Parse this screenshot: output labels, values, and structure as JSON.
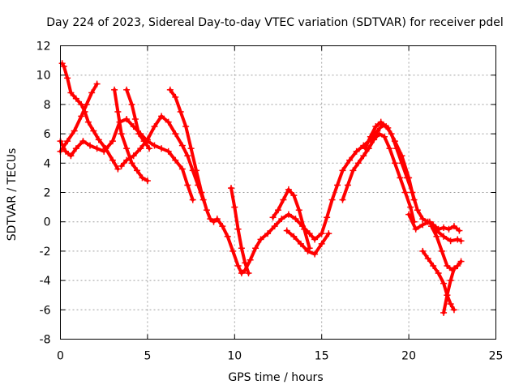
{
  "chart_data": {
    "type": "scatter",
    "title": "Day 224 of 2023, Sidereal Day-to-day VTEC variation (SDTVAR) for receiver pdel",
    "xlabel": "GPS time / hours",
    "ylabel": "SDTVAR / TECUs",
    "xlim": [
      0,
      25
    ],
    "ylim": [
      -8,
      12
    ],
    "xticks": [
      0,
      5,
      10,
      15,
      20,
      25
    ],
    "yticks": [
      -8,
      -6,
      -4,
      -2,
      0,
      2,
      4,
      6,
      8,
      10,
      12
    ],
    "grid": true,
    "marker": "+",
    "color": "#ff0000",
    "series": [
      {
        "name": "trace-1",
        "x": [
          0.0,
          0.3,
          0.6,
          0.9,
          1.3,
          1.7,
          2.1,
          2.5,
          3.0,
          3.4,
          3.8,
          4.2,
          4.6,
          5.0,
          5.4,
          5.8,
          6.2,
          6.6,
          7.0,
          7.3,
          7.6
        ],
        "y": [
          5.5,
          4.8,
          4.5,
          5.0,
          5.5,
          5.2,
          5.0,
          4.8,
          5.5,
          6.8,
          7.0,
          6.5,
          6.0,
          5.5,
          5.2,
          5.0,
          4.8,
          4.2,
          3.6,
          2.5,
          1.5
        ]
      },
      {
        "name": "trace-2",
        "x": [
          0.1,
          0.2,
          0.4,
          0.6,
          0.9,
          1.2,
          1.4,
          1.6,
          1.9,
          2.2,
          2.6,
          3.0,
          3.3
        ],
        "y": [
          10.8,
          10.6,
          9.8,
          8.8,
          8.4,
          8.0,
          7.5,
          6.8,
          6.2,
          5.6,
          5.0,
          4.2,
          3.6
        ]
      },
      {
        "name": "trace-3",
        "x": [
          0.0,
          0.4,
          0.8,
          1.2,
          1.5,
          1.8,
          2.1
        ],
        "y": [
          4.8,
          5.5,
          6.2,
          7.2,
          8.0,
          8.8,
          9.4
        ]
      },
      {
        "name": "trace-4",
        "x": [
          3.1,
          3.3,
          3.5,
          3.8,
          4.1,
          4.4,
          4.7,
          5.0
        ],
        "y": [
          9.0,
          7.5,
          6.0,
          5.0,
          4.0,
          3.5,
          3.0,
          2.8
        ]
      },
      {
        "name": "trace-5",
        "x": [
          3.5,
          3.8,
          4.2,
          4.6,
          5.0,
          5.4,
          5.8,
          6.2,
          6.6,
          7.0,
          7.3,
          7.6,
          7.9,
          8.2
        ],
        "y": [
          3.8,
          4.2,
          4.5,
          5.0,
          5.6,
          6.5,
          7.2,
          6.8,
          6.0,
          5.2,
          4.5,
          3.5,
          2.5,
          1.5
        ]
      },
      {
        "name": "trace-6",
        "x": [
          3.8,
          4.1,
          4.3,
          4.5,
          4.8,
          5.1
        ],
        "y": [
          9.0,
          8.0,
          7.0,
          6.0,
          5.5,
          5.0
        ]
      },
      {
        "name": "trace-7",
        "x": [
          6.3,
          6.6,
          6.9,
          7.2,
          7.5,
          7.8,
          8.1,
          8.4,
          8.6,
          8.8,
          9.0,
          9.3,
          9.6,
          9.9,
          10.2,
          10.4,
          10.6,
          10.9,
          11.2,
          11.5,
          11.9,
          12.3,
          12.7,
          13.1,
          13.5,
          13.9,
          14.3,
          14.6,
          15.0,
          15.3,
          15.6,
          15.9,
          16.2,
          16.6,
          17.0,
          17.4,
          17.8,
          18.2,
          18.5,
          18.8,
          19.2,
          19.6,
          20.0,
          20.3
        ],
        "y": [
          9.0,
          8.5,
          7.5,
          6.5,
          5.0,
          3.5,
          2.0,
          0.8,
          0.2,
          0.0,
          0.2,
          -0.3,
          -1.0,
          -2.0,
          -3.0,
          -3.5,
          -3.3,
          -2.6,
          -1.8,
          -1.2,
          -0.8,
          -0.3,
          0.2,
          0.5,
          0.2,
          -0.3,
          -0.8,
          -1.2,
          -0.8,
          0.3,
          1.5,
          2.5,
          3.5,
          4.2,
          4.8,
          5.2,
          5.6,
          6.2,
          6.6,
          6.4,
          5.5,
          4.5,
          3.0,
          1.5
        ]
      },
      {
        "name": "trace-8",
        "x": [
          9.8,
          10.0,
          10.2,
          10.4,
          10.6,
          10.8
        ],
        "y": [
          2.3,
          1.0,
          -0.5,
          -1.8,
          -2.8,
          -3.5
        ]
      },
      {
        "name": "trace-9",
        "x": [
          12.2,
          12.5,
          12.8,
          13.1,
          13.4,
          13.7,
          14.0,
          14.3
        ],
        "y": [
          0.3,
          0.8,
          1.5,
          2.2,
          1.8,
          0.8,
          -0.5,
          -1.8
        ]
      },
      {
        "name": "trace-10",
        "x": [
          13.0,
          13.4,
          13.8,
          14.2,
          14.6,
          15.0,
          15.4
        ],
        "y": [
          -0.6,
          -1.0,
          -1.5,
          -2.0,
          -2.2,
          -1.5,
          -0.8
        ]
      },
      {
        "name": "trace-11",
        "x": [
          16.2,
          16.5,
          16.8,
          17.1,
          17.4,
          17.7,
          18.0,
          18.3,
          18.6,
          18.9,
          19.2,
          19.5,
          19.8,
          20.1,
          20.3
        ],
        "y": [
          1.5,
          2.5,
          3.5,
          4.0,
          4.5,
          5.0,
          5.6,
          6.0,
          5.8,
          5.0,
          4.0,
          3.0,
          2.0,
          1.0,
          0.0
        ]
      },
      {
        "name": "trace-12",
        "x": [
          17.5,
          17.8,
          18.1,
          18.4,
          18.7,
          19.0,
          19.3,
          19.6,
          19.9,
          20.2,
          20.5,
          20.8,
          21.1,
          21.4,
          21.7,
          22.0,
          22.3,
          22.6,
          22.9
        ],
        "y": [
          5.0,
          5.8,
          6.5,
          6.8,
          6.5,
          6.0,
          5.0,
          4.0,
          3.0,
          2.0,
          0.8,
          0.2,
          0.0,
          -0.2,
          -0.5,
          -0.4,
          -0.5,
          -0.3,
          -0.6
        ]
      },
      {
        "name": "trace-13",
        "x": [
          20.0,
          20.4,
          20.8,
          21.2,
          21.6,
          22.0,
          22.4,
          22.8,
          23.0
        ],
        "y": [
          0.5,
          -0.5,
          -0.2,
          0.0,
          -0.6,
          -1.0,
          -1.3,
          -1.2,
          -1.3
        ]
      },
      {
        "name": "trace-14",
        "x": [
          20.8,
          21.1,
          21.4,
          21.7,
          22.0,
          22.2,
          22.4,
          22.6
        ],
        "y": [
          -2.0,
          -2.5,
          -3.0,
          -3.5,
          -4.2,
          -5.0,
          -5.6,
          -6.0
        ]
      },
      {
        "name": "trace-15",
        "x": [
          21.3,
          21.6,
          21.9,
          22.2,
          22.5,
          22.8,
          23.0
        ],
        "y": [
          -0.3,
          -1.0,
          -2.0,
          -3.0,
          -3.3,
          -3.0,
          -2.7
        ]
      },
      {
        "name": "trace-16",
        "x": [
          22.0,
          22.2,
          22.4,
          22.6
        ],
        "y": [
          -6.2,
          -5.0,
          -4.0,
          -3.2
        ]
      }
    ]
  }
}
